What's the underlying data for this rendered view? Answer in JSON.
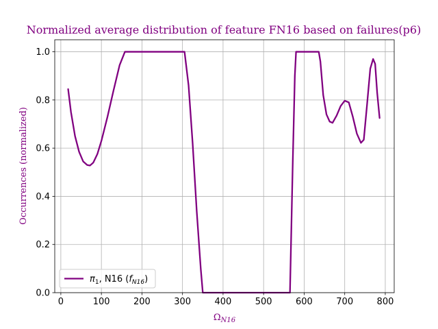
{
  "chart_data": {
    "type": "line",
    "title": "Normalized average distribution of feature FN16 based on failures(p6)",
    "xlabel_main": "Ω",
    "xlabel_sub": "N16",
    "ylabel": "Occurrences (normalized)",
    "xlim": [
      -15,
      822
    ],
    "ylim": [
      0,
      1.05
    ],
    "xticks": [
      0,
      100,
      200,
      300,
      400,
      500,
      600,
      700,
      800
    ],
    "yticks": [
      0.0,
      0.2,
      0.4,
      0.6,
      0.8,
      1.0
    ],
    "xtick_labels": [
      "0",
      "100",
      "200",
      "300",
      "400",
      "500",
      "600",
      "700",
      "800"
    ],
    "ytick_labels": [
      "0.0",
      "0.2",
      "0.4",
      "0.6",
      "0.8",
      "1.0"
    ],
    "grid": true,
    "legend_position": "lower-left",
    "series": [
      {
        "name": "π1, N16 (fN16)",
        "legend_parts": {
          "pi": "π",
          "pi_sub": "1",
          "mid": ", N16 (",
          "f": "f",
          "f_sub": "N16",
          "close": ")"
        },
        "color": "#800080",
        "x": [
          18,
          25,
          35,
          45,
          55,
          65,
          72,
          80,
          90,
          100,
          115,
          130,
          145,
          158,
          165,
          200,
          250,
          300,
          305,
          315,
          325,
          335,
          345,
          350,
          355,
          400,
          450,
          500,
          550,
          565,
          572,
          577,
          580,
          600,
          620,
          636,
          640,
          647,
          655,
          663,
          670,
          680,
          690,
          700,
          710,
          720,
          730,
          740,
          747,
          755,
          763,
          770,
          775,
          780,
          786
        ],
        "y": [
          0.845,
          0.75,
          0.65,
          0.585,
          0.545,
          0.53,
          0.528,
          0.54,
          0.575,
          0.63,
          0.73,
          0.84,
          0.945,
          1.0,
          1.0,
          1.0,
          1.0,
          1.0,
          1.0,
          0.86,
          0.62,
          0.34,
          0.1,
          0.0,
          0.0,
          0.0,
          0.0,
          0.0,
          0.0,
          0.0,
          0.55,
          0.9,
          1.0,
          1.0,
          1.0,
          1.0,
          0.96,
          0.82,
          0.74,
          0.71,
          0.705,
          0.735,
          0.775,
          0.797,
          0.79,
          0.73,
          0.66,
          0.622,
          0.635,
          0.78,
          0.93,
          0.97,
          0.95,
          0.83,
          0.725
        ]
      }
    ]
  }
}
